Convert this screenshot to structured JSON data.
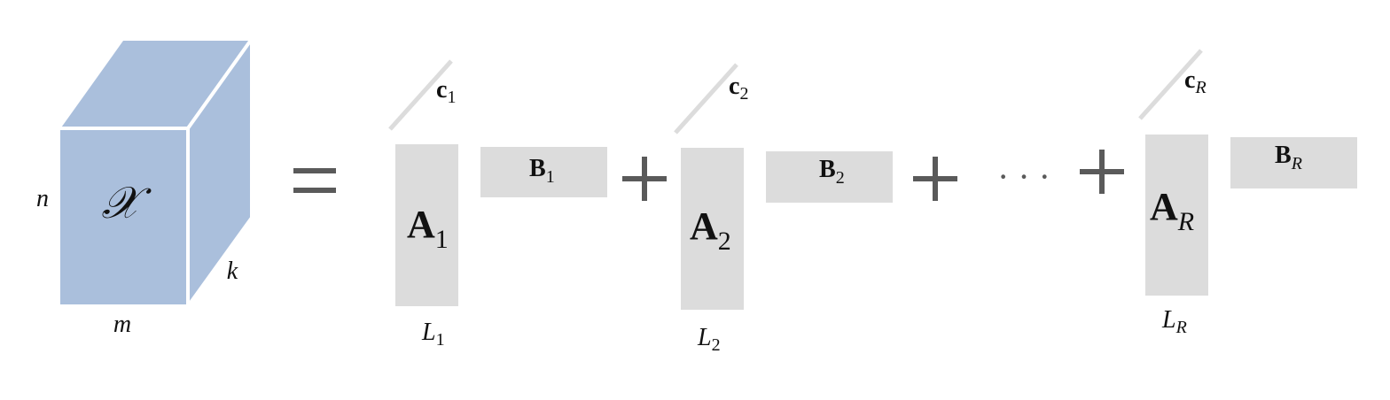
{
  "colors": {
    "tensor_fill": "#aabfdc",
    "tensor_edge": "#ffffff",
    "factor_fill": "#dcdcdc",
    "operator": "#5a5a5a",
    "text": "#111111"
  },
  "tensor": {
    "symbol": "𝒳",
    "dim_rows": "n",
    "dim_cols": "m",
    "dim_depth": "k"
  },
  "operators": {
    "equals": "=",
    "plus": "+",
    "ellipsis": "· · ·"
  },
  "terms": [
    {
      "c_base": "c",
      "c_sub": "1",
      "a_base": "A",
      "a_sub": "1",
      "b_base": "B",
      "b_sub": "1",
      "l_base": "L",
      "l_sub": "1"
    },
    {
      "c_base": "c",
      "c_sub": "2",
      "a_base": "A",
      "a_sub": "2",
      "b_base": "B",
      "b_sub": "2",
      "l_base": "L",
      "l_sub": "2"
    },
    {
      "c_base": "c",
      "c_sub": "R",
      "a_base": "A",
      "a_sub": "R",
      "b_base": "B",
      "b_sub": "R",
      "l_base": "L",
      "l_sub": "R"
    }
  ]
}
